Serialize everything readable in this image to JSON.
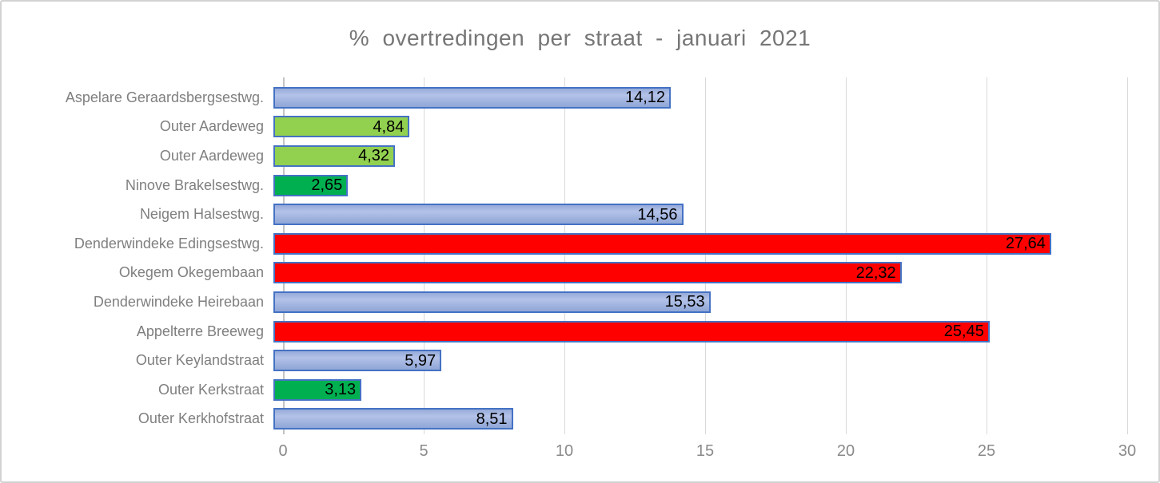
{
  "title": "% overtredingen per straat - januari 2021",
  "colors": {
    "bar_border": "#4472c4",
    "blue_fill_top": "#96abd9",
    "blue_fill_mid": "#b3c2e8",
    "blue_fill_bottom": "#8fa6d6",
    "light_green": "#92d050",
    "dark_green": "#00b050",
    "red": "#ff0000",
    "gridline": "#d9d9d9",
    "axis_line": "#c4c4c4",
    "title_text": "#767676",
    "category_text": "#7f7f7f",
    "tick_text": "#8a8a8a",
    "value_text": "#000000",
    "frame_border": "#d2d2d2"
  },
  "chart_data": {
    "type": "bar",
    "orientation": "horizontal",
    "title": "% overtredingen per straat - januari 2021",
    "xlabel": "",
    "ylabel": "",
    "xlim": [
      0,
      30
    ],
    "x_ticks": [
      "0",
      "5",
      "10",
      "15",
      "20",
      "25",
      "30"
    ],
    "x_tick_values": [
      0,
      5,
      10,
      15,
      20,
      25,
      30
    ],
    "grid": true,
    "legend": false,
    "value_label_position": "inside-end",
    "categories": [
      "Aspelare Geraardsbergsestwg.",
      "Outer Aardeweg",
      "Outer Aardeweg",
      "Ninove Brakelsestwg.",
      "Neigem Halsestwg.",
      "Denderwindeke Edingsestwg.",
      "Okegem Okegembaan",
      "Denderwindeke Heirebaan",
      "Appelterre Breeweg",
      "Outer Keylandstraat",
      "Outer Kerkstraat",
      "Outer Kerkhofstraat"
    ],
    "values": [
      14.12,
      4.84,
      4.32,
      2.65,
      14.56,
      27.64,
      22.32,
      15.53,
      25.45,
      5.97,
      3.13,
      8.51
    ],
    "value_labels": [
      "14,12",
      "4,84",
      "4,32",
      "2,65",
      "14,56",
      "27,64",
      "22,32",
      "15,53",
      "25,45",
      "5,97",
      "3,13",
      "8,51"
    ],
    "bar_colors": [
      "blue",
      "light_green",
      "light_green",
      "dark_green",
      "blue",
      "red",
      "red",
      "blue",
      "red",
      "blue",
      "dark_green",
      "blue"
    ]
  }
}
